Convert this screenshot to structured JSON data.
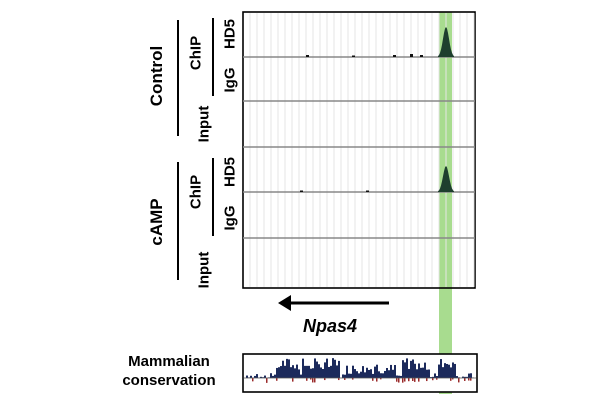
{
  "conditions": [
    {
      "label": "Control",
      "chip_label": "ChIP",
      "hd5_label": "HD5",
      "igg_label": "IgG",
      "input_label": "Input"
    },
    {
      "label": "cAMP",
      "chip_label": "ChIP",
      "hd5_label": "HD5",
      "igg_label": "IgG",
      "input_label": "Input"
    }
  ],
  "gene": {
    "name": "Npas4",
    "strand": "minus"
  },
  "conservation": {
    "label_line1": "Mammalian",
    "label_line2": "conservation"
  },
  "colors": {
    "highlight": "#9fd883",
    "peak": "#1e3f2e",
    "conservation_fill": "#1c2a5c",
    "conservation_neg": "#9a2a2a",
    "grid": "#e6e6e6",
    "track_baseline": "#aaaaaa"
  }
}
